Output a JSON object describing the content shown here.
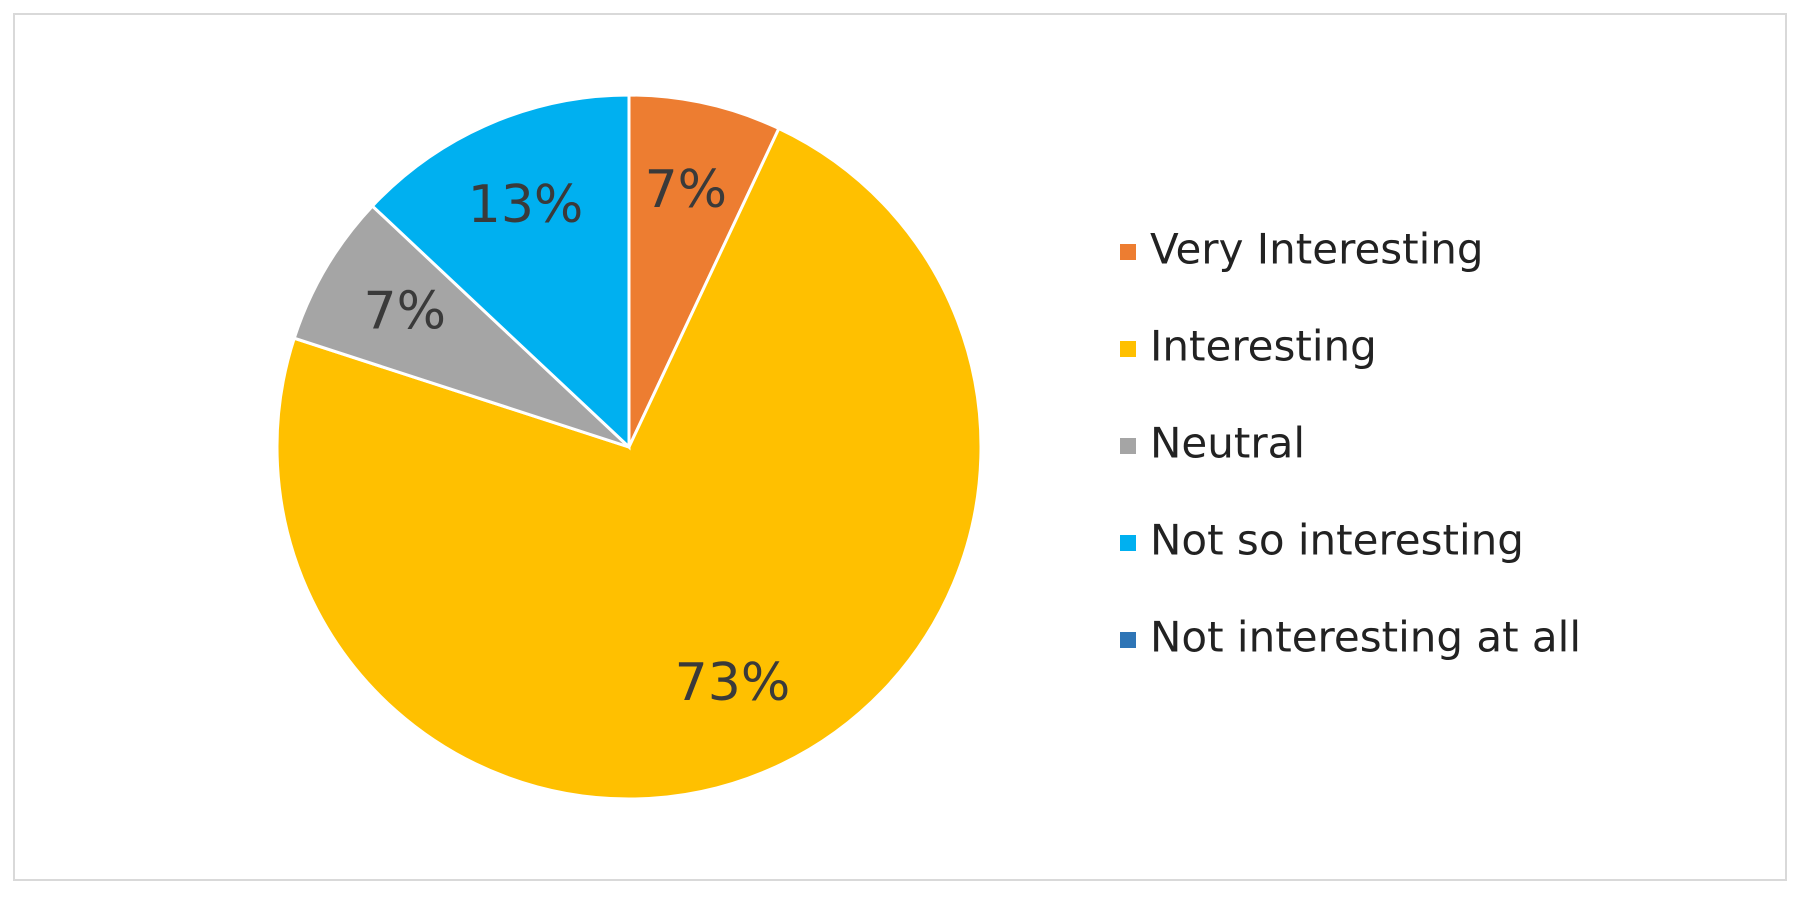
{
  "chart_data": {
    "type": "pie",
    "categories": [
      "Very Interesting",
      "Interesting",
      "Neutral",
      "Not so interesting",
      "Not interesting at all"
    ],
    "values": [
      7,
      73,
      7,
      13,
      0
    ],
    "value_labels": [
      "7%",
      "73%",
      "7%",
      "13%",
      null
    ],
    "colors": [
      "#ED7D31",
      "#FFC000",
      "#A5A5A5",
      "#00B0F0",
      "#2E75B6"
    ],
    "legend": "right"
  }
}
